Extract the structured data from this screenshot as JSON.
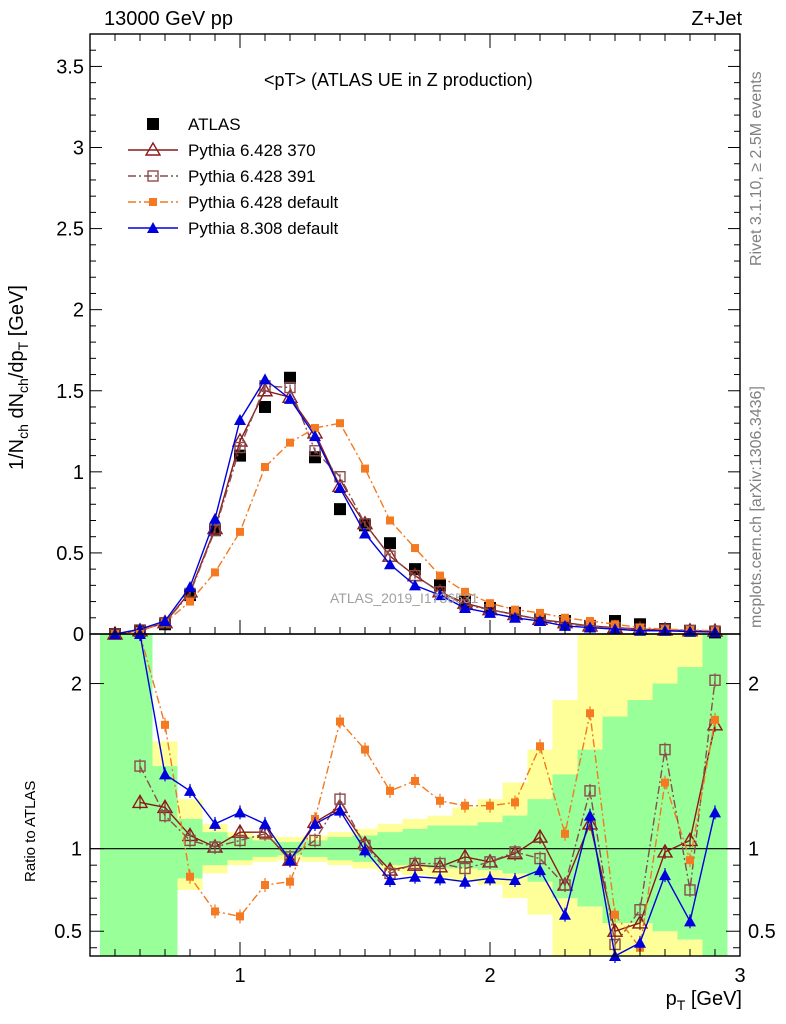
{
  "header": {
    "left": "13000 GeV pp",
    "right": "Z+Jet",
    "title": "<pT> (ATLAS UE in Z production)"
  },
  "side_labels": {
    "rivet": "Rivet 3.1.10, ≥ 2.5M events",
    "mcplots": "mcplots.cern.ch [arXiv:1306.3436]"
  },
  "watermark": "ATLAS_2019_I1736531",
  "chart_data": [
    {
      "type": "line",
      "panel": "main",
      "ylabel": "1/N_ch dN_ch/dp_T [GeV]",
      "xlim": [
        0.4,
        3.0
      ],
      "ylim": [
        0,
        3.7
      ],
      "y_ticks": [
        "0",
        "0.5",
        "1",
        "1.5",
        "2",
        "2.5",
        "3",
        "3.5"
      ],
      "x": [
        0.5,
        0.6,
        0.7,
        0.8,
        0.9,
        1.0,
        1.1,
        1.2,
        1.3,
        1.4,
        1.5,
        1.6,
        1.7,
        1.8,
        1.9,
        2.0,
        2.1,
        2.2,
        2.3,
        2.4,
        2.5,
        2.6,
        2.7,
        2.8,
        2.9
      ],
      "series": [
        {
          "name": "ATLAS",
          "color": "#000000",
          "marker": "square-filled",
          "line": "none",
          "values": [
            0.0,
            0.02,
            0.06,
            0.24,
            0.64,
            1.1,
            1.4,
            1.58,
            1.09,
            0.77,
            0.67,
            0.56,
            0.4,
            0.3,
            0.2,
            0.16,
            0.13,
            0.09,
            0.08,
            0.05,
            0.08,
            0.06,
            0.03,
            0.02,
            0.01
          ]
        },
        {
          "name": "Pythia 6.428 370",
          "color": "#8b1a1a",
          "marker": "triangle-open",
          "line": "solid",
          "values": [
            0.0,
            0.02,
            0.07,
            0.26,
            0.65,
            1.19,
            1.5,
            1.46,
            1.24,
            0.91,
            0.68,
            0.48,
            0.36,
            0.26,
            0.19,
            0.15,
            0.12,
            0.09,
            0.07,
            0.05,
            0.04,
            0.03,
            0.025,
            0.02,
            0.018
          ]
        },
        {
          "name": "Pythia 6.428 391",
          "color": "#8b4c4c",
          "marker": "square-open",
          "line": "dash-dot",
          "values": [
            0.0,
            0.025,
            0.07,
            0.25,
            0.64,
            1.15,
            1.53,
            1.52,
            1.13,
            0.97,
            0.68,
            0.48,
            0.36,
            0.26,
            0.18,
            0.15,
            0.12,
            0.09,
            0.06,
            0.05,
            0.04,
            0.03,
            0.025,
            0.02,
            0.018
          ]
        },
        {
          "name": "Pythia 6.428 default",
          "color": "#f47920",
          "marker": "square-filled-small",
          "line": "dash-dot",
          "values": [
            0.0,
            0.02,
            0.07,
            0.2,
            0.38,
            0.63,
            1.03,
            1.18,
            1.27,
            1.3,
            1.02,
            0.7,
            0.53,
            0.36,
            0.26,
            0.19,
            0.15,
            0.13,
            0.1,
            0.08,
            0.06,
            0.04,
            0.03,
            0.025,
            0.02
          ]
        },
        {
          "name": "Pythia 8.308 default",
          "color": "#0000dd",
          "marker": "triangle-filled",
          "line": "solid",
          "values": [
            0.0,
            0.03,
            0.08,
            0.29,
            0.71,
            1.32,
            1.57,
            1.45,
            1.22,
            0.9,
            0.62,
            0.43,
            0.3,
            0.24,
            0.16,
            0.13,
            0.1,
            0.08,
            0.05,
            0.04,
            0.03,
            0.02,
            0.02,
            0.015,
            0.012
          ]
        }
      ]
    },
    {
      "type": "line",
      "panel": "ratio",
      "ylabel": "Ratio to ATLAS",
      "xlabel": "p_T [GeV]",
      "xlim": [
        0.4,
        3.0
      ],
      "ylim": [
        0.35,
        2.3
      ],
      "y_ticks": [
        "0.5",
        "1",
        "2"
      ],
      "x_ticks": [
        "1",
        "2",
        "3"
      ],
      "reference_line": 1,
      "uncertainty_bands": {
        "edges": [
          0.44,
          0.55,
          0.65,
          0.75,
          0.85,
          0.95,
          1.05,
          1.15,
          1.25,
          1.35,
          1.45,
          1.55,
          1.65,
          1.75,
          1.85,
          1.95,
          2.05,
          2.15,
          2.25,
          2.35,
          2.45,
          2.55,
          2.65,
          2.75,
          2.85,
          2.95
        ],
        "green": [
          [
            0.35,
            2.3
          ],
          [
            0.35,
            2.3
          ],
          [
            0.35,
            1.5
          ],
          [
            0.82,
            1.18
          ],
          [
            0.9,
            1.1
          ],
          [
            0.93,
            1.07
          ],
          [
            0.95,
            1.05
          ],
          [
            0.96,
            1.04
          ],
          [
            0.95,
            1.05
          ],
          [
            0.93,
            1.07
          ],
          [
            0.92,
            1.08
          ],
          [
            0.9,
            1.1
          ],
          [
            0.9,
            1.12
          ],
          [
            0.88,
            1.14
          ],
          [
            0.88,
            1.14
          ],
          [
            0.87,
            1.16
          ],
          [
            0.85,
            1.2
          ],
          [
            0.8,
            1.3
          ],
          [
            0.7,
            1.45
          ],
          [
            0.65,
            1.6
          ],
          [
            0.55,
            1.8
          ],
          [
            0.55,
            1.9
          ],
          [
            0.5,
            2.0
          ],
          [
            0.45,
            2.1
          ],
          [
            0.35,
            2.3
          ]
        ],
        "yellow": [
          [
            0.35,
            2.3
          ],
          [
            0.35,
            2.3
          ],
          [
            0.35,
            1.65
          ],
          [
            0.75,
            1.3
          ],
          [
            0.85,
            1.15
          ],
          [
            0.9,
            1.1
          ],
          [
            0.92,
            1.08
          ],
          [
            0.93,
            1.07
          ],
          [
            0.92,
            1.08
          ],
          [
            0.9,
            1.1
          ],
          [
            0.88,
            1.12
          ],
          [
            0.86,
            1.15
          ],
          [
            0.84,
            1.18
          ],
          [
            0.82,
            1.2
          ],
          [
            0.8,
            1.25
          ],
          [
            0.78,
            1.3
          ],
          [
            0.7,
            1.4
          ],
          [
            0.6,
            1.6
          ],
          [
            0.35,
            1.9
          ],
          [
            0.35,
            2.3
          ],
          [
            0.35,
            2.3
          ],
          [
            0.35,
            2.3
          ],
          [
            0.35,
            2.3
          ],
          [
            0.35,
            2.3
          ],
          [
            0.35,
            2.3
          ]
        ]
      },
      "x": [
        0.6,
        0.7,
        0.8,
        0.9,
        1.0,
        1.1,
        1.2,
        1.3,
        1.4,
        1.5,
        1.6,
        1.7,
        1.8,
        1.9,
        2.0,
        2.1,
        2.2,
        2.3,
        2.4,
        2.5,
        2.6,
        2.7,
        2.8,
        2.9
      ],
      "series": [
        {
          "name": "Pythia 6.428 370",
          "color": "#8b1a1a",
          "marker": "triangle-open",
          "line": "solid",
          "values": [
            1.28,
            1.25,
            1.08,
            1.01,
            1.1,
            1.1,
            0.93,
            1.16,
            1.25,
            1.03,
            0.87,
            0.9,
            0.89,
            0.95,
            0.92,
            0.97,
            1.07,
            0.78,
            1.15,
            0.5,
            0.55,
            0.98,
            1.05,
            1.75
          ]
        },
        {
          "name": "Pythia 6.428 391",
          "color": "#8b4c4c",
          "marker": "square-open",
          "line": "dash-dot",
          "values": [
            1.5,
            1.2,
            1.05,
            1.01,
            1.05,
            1.09,
            0.95,
            1.05,
            1.3,
            1.02,
            0.85,
            0.91,
            0.91,
            0.88,
            0.92,
            0.98,
            0.94,
            0.78,
            1.35,
            0.42,
            0.63,
            1.6,
            0.75,
            2.02
          ]
        },
        {
          "name": "Pythia 6.428 default",
          "color": "#f47920",
          "marker": "square-filled-small",
          "line": "dash-dot",
          "values": [
            3.0,
            1.75,
            0.83,
            0.62,
            0.59,
            0.78,
            0.8,
            1.18,
            1.77,
            1.6,
            1.35,
            1.41,
            1.29,
            1.26,
            1.26,
            1.28,
            1.62,
            1.09,
            1.82,
            0.6,
            0.4,
            1.4,
            0.93,
            1.78
          ]
        },
        {
          "name": "Pythia 8.308 default",
          "color": "#0000dd",
          "marker": "triangle-filled",
          "line": "solid",
          "values": [
            3.0,
            1.45,
            1.35,
            1.15,
            1.22,
            1.15,
            0.93,
            1.15,
            1.23,
            0.99,
            0.81,
            0.83,
            0.82,
            0.8,
            0.82,
            0.81,
            0.87,
            0.6,
            1.2,
            0.35,
            0.43,
            0.84,
            0.56,
            1.22
          ]
        }
      ]
    }
  ]
}
